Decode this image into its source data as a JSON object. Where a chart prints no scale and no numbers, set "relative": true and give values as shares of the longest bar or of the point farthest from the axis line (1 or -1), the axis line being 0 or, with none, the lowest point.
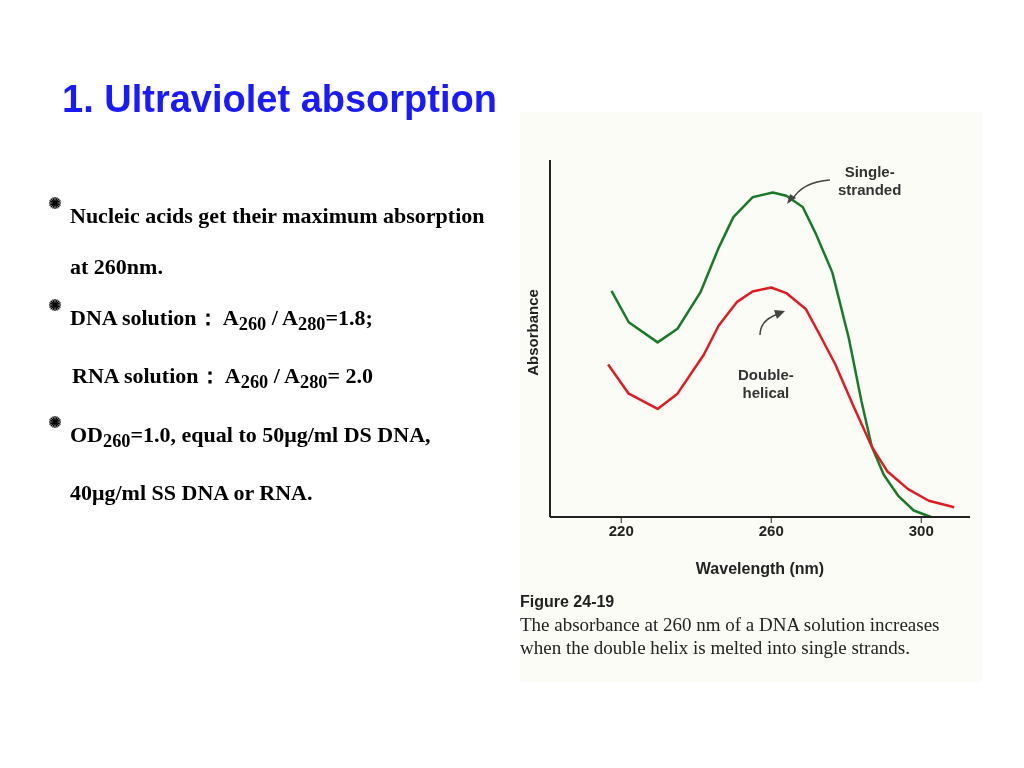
{
  "chart_data": {
    "type": "line",
    "relative": true,
    "title": "1. Ultraviolet absorption",
    "xlabel": "Wavelength (nm)",
    "ylabel": "Absorbance",
    "xlim": [
      201,
      313
    ],
    "xticks": [
      220,
      260,
      300
    ],
    "grid": false,
    "legend": false,
    "marker": "none",
    "line_style": "solid",
    "series": [
      {
        "name": "Single-stranded",
        "color": "#1a7a2a",
        "x": [
          217.4,
          222,
          229.7,
          235,
          241.1,
          246,
          249.9,
          255,
          260.4,
          264,
          268.4,
          272,
          276.3,
          280.7,
          284,
          286.8,
          290,
          293.8,
          298,
          302.6
        ],
        "values": [
          0.697,
          0.6,
          0.538,
          0.58,
          0.692,
          0.83,
          0.924,
          0.985,
          1.0,
          0.99,
          0.955,
          0.87,
          0.753,
          0.55,
          0.36,
          0.217,
          0.13,
          0.066,
          0.02,
          0
        ]
      },
      {
        "name": "Double-helical",
        "color": "#e01b24",
        "x": [
          216.5,
          222,
          229.7,
          235,
          242,
          246,
          250.8,
          255,
          260,
          264,
          269.2,
          273,
          277.1,
          282,
          286.8,
          291,
          296.5,
          302,
          308.8
        ],
        "values": [
          0.47,
          0.38,
          0.333,
          0.38,
          0.5,
          0.59,
          0.662,
          0.695,
          0.707,
          0.69,
          0.641,
          0.56,
          0.47,
          0.34,
          0.217,
          0.14,
          0.086,
          0.05,
          0.03
        ]
      }
    ],
    "annotations": [
      "Nucleic acids get their maximum absorption at 260nm.",
      "DNA solution：  A$_{260}$ / A$_{280}$=1.8;",
      "RNA solution：     A$_{260}$ / A$_{280}$= 2.0",
      "OD$_{260}$=1.0, equal to 50μg/ml DS DNA, 40μg/ml SS DNA or RNA.",
      "Figure 24-19",
      "The absorbance at 260 nm of a DNA solution increases when the double helix is melted into single strands."
    ]
  }
}
